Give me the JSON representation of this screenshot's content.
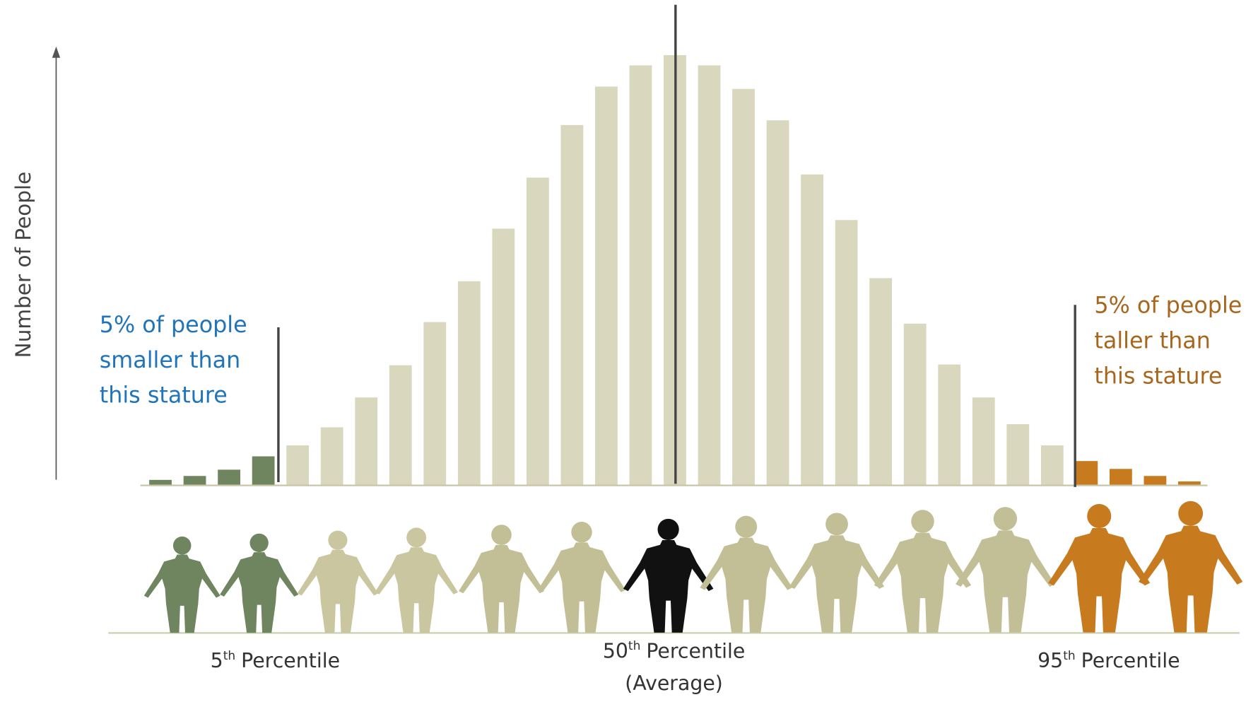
{
  "chart_data": {
    "type": "bar",
    "y_label": "Number of People",
    "values": [
      7,
      12,
      20,
      37,
      51,
      74,
      112,
      153,
      208,
      260,
      327,
      392,
      459,
      508,
      535,
      548,
      535,
      505,
      465,
      396,
      338,
      264,
      206,
      154,
      112,
      78,
      51,
      31,
      21,
      12,
      5
    ],
    "colors": [
      "#6f8560",
      "#6f8560",
      "#6f8560",
      "#6f8560",
      "#d9d7bd",
      "#d9d7bd",
      "#d9d7bd",
      "#d9d7bd",
      "#d9d7bd",
      "#d9d7bd",
      "#d9d7bd",
      "#d9d7bd",
      "#d9d7bd",
      "#d9d7bd",
      "#d9d7bd",
      "#d9d7bd",
      "#d9d7bd",
      "#d9d7bd",
      "#d9d7bd",
      "#d9d7bd",
      "#d9d7bd",
      "#d9d7bd",
      "#d9d7bd",
      "#d9d7bd",
      "#d9d7bd",
      "#d9d7bd",
      "#d9d7bd",
      "#c87a1e",
      "#c87a1e",
      "#c87a1e",
      "#c87a1e"
    ],
    "ylim": [
      0,
      560
    ],
    "left_note": {
      "lines": [
        "5% of people",
        "smaller than",
        "this stature"
      ],
      "color": "#1f74bb"
    },
    "right_note": {
      "lines": [
        "5% of people",
        "taller than",
        "this stature"
      ],
      "color": "#a8651c"
    },
    "percentiles": [
      {
        "number": "5",
        "suffix": "th",
        "text": "Percentile"
      },
      {
        "number": "50",
        "suffix": "th",
        "text": "Percentile",
        "note": "(Average)"
      },
      {
        "number": "95",
        "suffix": "th",
        "text": "Percentile"
      }
    ]
  }
}
